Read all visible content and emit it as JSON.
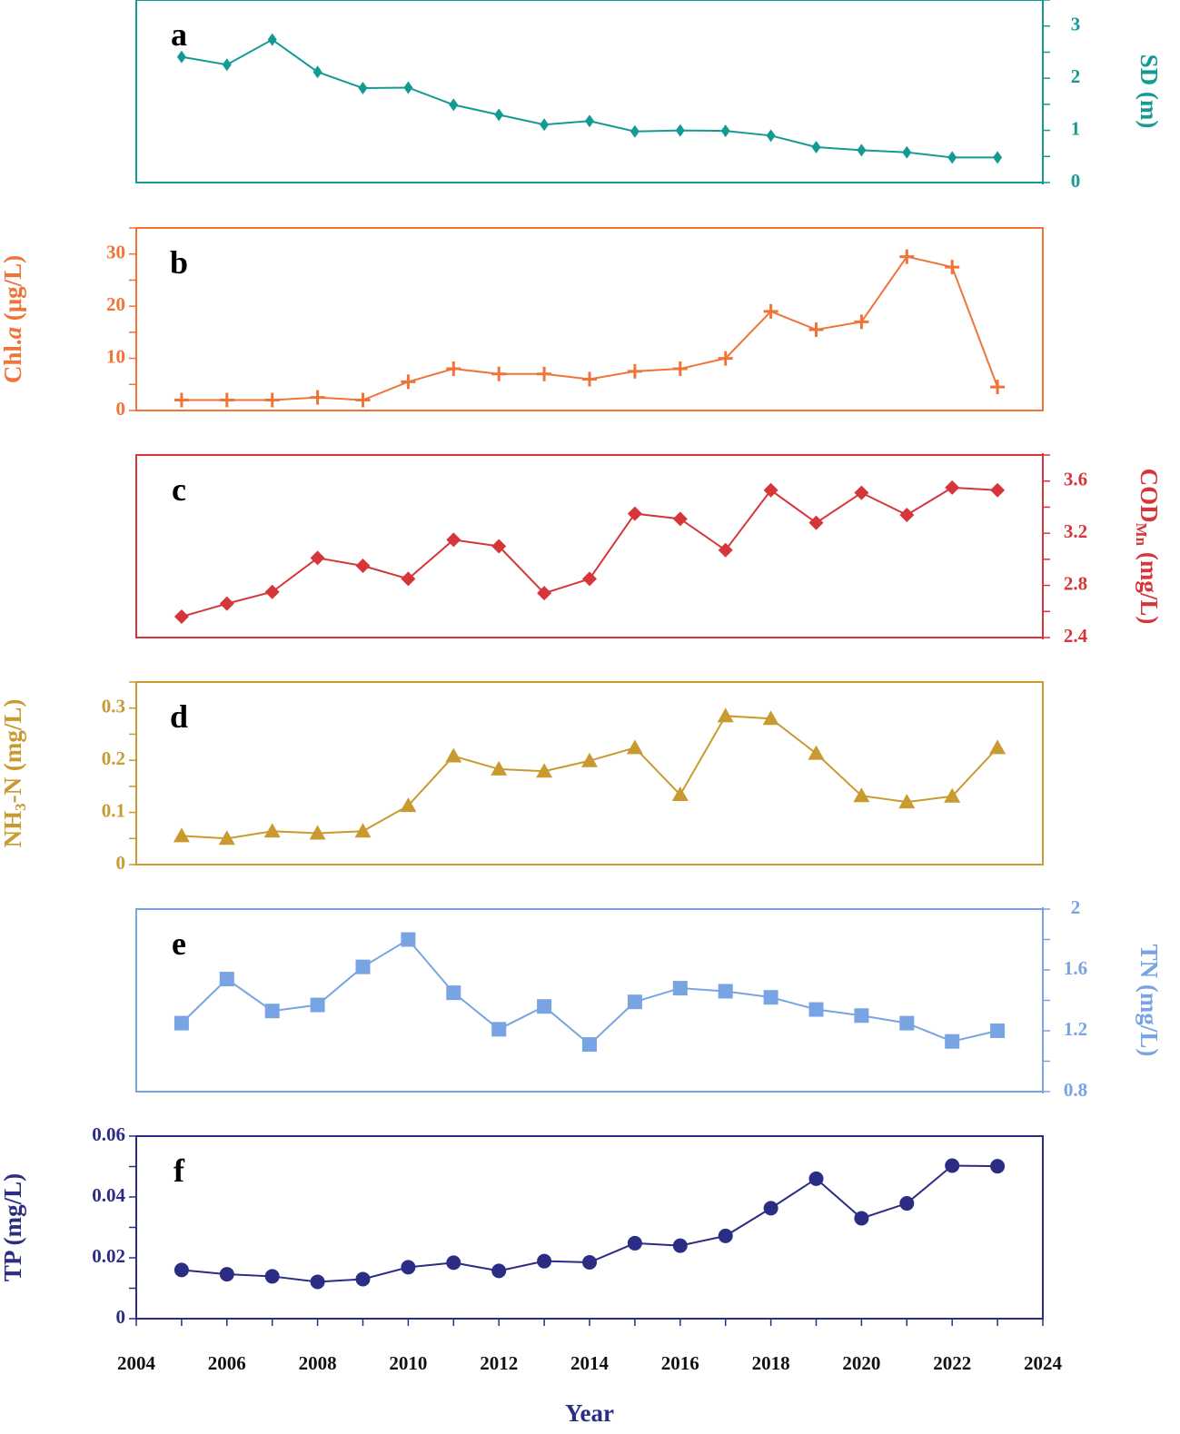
{
  "chart_data": {
    "type": "line",
    "layout": "stacked",
    "x": [
      2005,
      2006,
      2007,
      2008,
      2009,
      2010,
      2011,
      2012,
      2013,
      2014,
      2015,
      2016,
      2017,
      2018,
      2019,
      2020,
      2021,
      2022,
      2023
    ],
    "xlim": [
      2004,
      2024
    ],
    "xticks": [
      "2004",
      "2006",
      "2008",
      "2010",
      "2012",
      "2014",
      "2016",
      "2018",
      "2020",
      "2022",
      "2024"
    ],
    "xlabel": "Year",
    "xlabel_color": "#2b2c84",
    "panels": [
      {
        "letter": "a",
        "color": "#139a94",
        "marker": "diamond-thin",
        "axis_side": "right",
        "ylabel": "SD (m)",
        "ylim": [
          0,
          3.5
        ],
        "yticks": [
          0,
          1,
          2,
          3
        ],
        "ytick_labels": [
          "0",
          "1",
          "2",
          "3"
        ],
        "values": [
          2.41,
          2.26,
          2.74,
          2.12,
          1.81,
          1.82,
          1.49,
          1.3,
          1.11,
          1.18,
          0.98,
          1.0,
          0.99,
          0.9,
          0.68,
          0.62,
          0.58,
          0.48,
          0.48
        ]
      },
      {
        "letter": "b",
        "color": "#f07338",
        "marker": "plus",
        "axis_side": "left",
        "ylabel": "Chl.a (μg/L)",
        "ylim": [
          0,
          35
        ],
        "yticks": [
          0,
          10,
          20,
          30
        ],
        "ytick_labels": [
          "0",
          "10",
          "20",
          "30"
        ],
        "values": [
          2.0,
          2.0,
          2.0,
          2.5,
          2.0,
          5.5,
          8.0,
          7.0,
          7.0,
          6.0,
          7.5,
          8.0,
          10.0,
          19.0,
          15.5,
          17.0,
          29.5,
          27.5,
          4.5
        ]
      },
      {
        "letter": "c",
        "color": "#d6363a",
        "marker": "diamond",
        "axis_side": "right",
        "ylabel": "CODMn (mg/L)",
        "ylim": [
          2.4,
          3.8
        ],
        "yticks": [
          2.4,
          2.8,
          3.2,
          3.6
        ],
        "ytick_labels": [
          "2.4",
          "2.8",
          "3.2",
          "3.6"
        ],
        "values": [
          2.56,
          2.66,
          2.75,
          3.01,
          2.95,
          2.85,
          3.15,
          3.1,
          2.74,
          2.85,
          3.35,
          3.31,
          3.07,
          3.53,
          3.28,
          3.51,
          3.34,
          3.55,
          3.53
        ]
      },
      {
        "letter": "d",
        "color": "#c99a30",
        "marker": "triangle",
        "axis_side": "left",
        "ylabel": "NH3-N (mg/L)",
        "ylim": [
          0,
          0.35
        ],
        "yticks": [
          0,
          0.1,
          0.2,
          0.3
        ],
        "ytick_labels": [
          "0",
          "0.1",
          "0.2",
          "0.3"
        ],
        "values": [
          0.055,
          0.05,
          0.064,
          0.06,
          0.064,
          0.113,
          0.208,
          0.183,
          0.179,
          0.199,
          0.224,
          0.134,
          0.285,
          0.28,
          0.213,
          0.132,
          0.12,
          0.131,
          0.224
        ]
      },
      {
        "letter": "e",
        "color": "#79a4e4",
        "marker": "square",
        "axis_side": "right",
        "ylabel": "TN (mg/L)",
        "ylim": [
          0.8,
          2.0
        ],
        "yticks": [
          0.8,
          1.2,
          1.6,
          2.0
        ],
        "ytick_labels": [
          "0.8",
          "1.2",
          "1.6",
          "2"
        ],
        "values": [
          1.25,
          1.54,
          1.33,
          1.37,
          1.62,
          1.8,
          1.45,
          1.21,
          1.36,
          1.11,
          1.39,
          1.48,
          1.46,
          1.42,
          1.34,
          1.3,
          1.25,
          1.13,
          1.2
        ]
      },
      {
        "letter": "f",
        "color": "#2b2c84",
        "marker": "circle",
        "axis_side": "left",
        "ylabel": "TP (mg/L)",
        "ylim": [
          0,
          0.06
        ],
        "yticks": [
          0,
          0.02,
          0.04,
          0.06
        ],
        "ytick_labels": [
          "0",
          "0.02",
          "0.04",
          "0.06"
        ],
        "values": [
          0.016,
          0.0146,
          0.0139,
          0.0121,
          0.013,
          0.0169,
          0.0184,
          0.0157,
          0.0189,
          0.0185,
          0.0248,
          0.024,
          0.0272,
          0.0363,
          0.046,
          0.033,
          0.0379,
          0.0503,
          0.0501
        ]
      }
    ]
  }
}
